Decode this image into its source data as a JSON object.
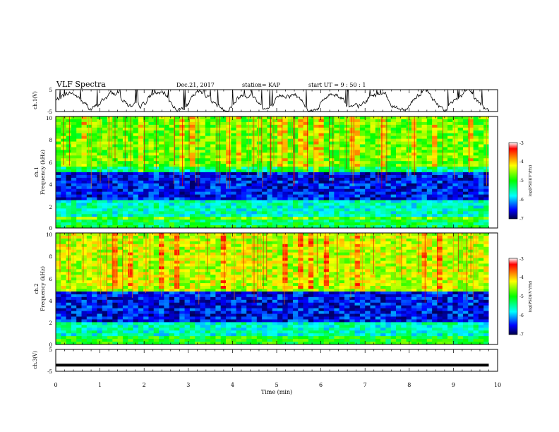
{
  "header": {
    "title": "VLF Spectra",
    "date": "Dec.21, 2017",
    "station": "station= KAP",
    "start": "start  UT  =   9 : 50 : 1"
  },
  "chart_data": [
    {
      "type": "line",
      "panel": "ch1-waveform",
      "ylabel": "ch.1(V)",
      "ylim": [
        -5,
        5
      ],
      "yticks": [
        "5",
        "-5"
      ],
      "x_range_min": [
        0,
        9.8
      ],
      "description_of_series": "noisy trace oscillating near 0 V with frequent spikes to the upper limit"
    },
    {
      "type": "heatmap",
      "panel": "ch1-spectrogram",
      "ylabel_top": "ch.1",
      "ylabel": "Frequency  (kHz)",
      "ylim_khz": [
        0,
        10
      ],
      "yticks": [
        "0",
        "2",
        "4",
        "6",
        "8",
        "10"
      ],
      "colorbar": {
        "label": "log(PSD)(V²/Hz)",
        "range": [
          -7,
          -3
        ],
        "ticks": [
          "-3",
          "-4",
          "-5",
          "-6",
          "-7"
        ]
      },
      "bands_khz": [
        {
          "from": 0,
          "to": 0.8,
          "level": -5.2
        },
        {
          "from": 0.8,
          "to": 1.1,
          "level": -4.6
        },
        {
          "from": 1.1,
          "to": 2.6,
          "level": -5.6
        },
        {
          "from": 2.6,
          "to": 4.9,
          "level": -6.5
        },
        {
          "from": 4.9,
          "to": 5.6,
          "level": -5.4
        },
        {
          "from": 5.6,
          "to": 10,
          "level": -4.7
        }
      ]
    },
    {
      "type": "heatmap",
      "panel": "ch2-spectrogram",
      "ylabel_top": "ch.2",
      "ylabel": "Frequency  (kHz)",
      "ylim_khz": [
        0,
        10
      ],
      "yticks": [
        "0",
        "2",
        "4",
        "6",
        "8",
        "10"
      ],
      "colorbar": {
        "label": "log(PSD)(V²/Hz)",
        "range": [
          -7,
          -3
        ],
        "ticks": [
          "-3",
          "-4",
          "-5",
          "-6",
          "-7"
        ]
      },
      "bands_khz": [
        {
          "from": 0,
          "to": 0.7,
          "level": -5.0
        },
        {
          "from": 0.7,
          "to": 2.0,
          "level": -5.6
        },
        {
          "from": 2.0,
          "to": 4.7,
          "level": -6.5
        },
        {
          "from": 4.7,
          "to": 10,
          "level": -4.4
        }
      ]
    },
    {
      "type": "line",
      "panel": "ch3-waveform",
      "ylabel": "ch.3(V)",
      "ylim": [
        -5,
        5
      ],
      "yticks": [
        "5",
        "-5"
      ],
      "x_range_min": [
        0,
        9.8
      ],
      "y_level": -2.2,
      "xlabel": "Time  (min)",
      "xlim": [
        0,
        10
      ],
      "xticks": [
        "0",
        "1",
        "2",
        "3",
        "4",
        "5",
        "6",
        "7",
        "8",
        "9",
        "10"
      ]
    }
  ]
}
